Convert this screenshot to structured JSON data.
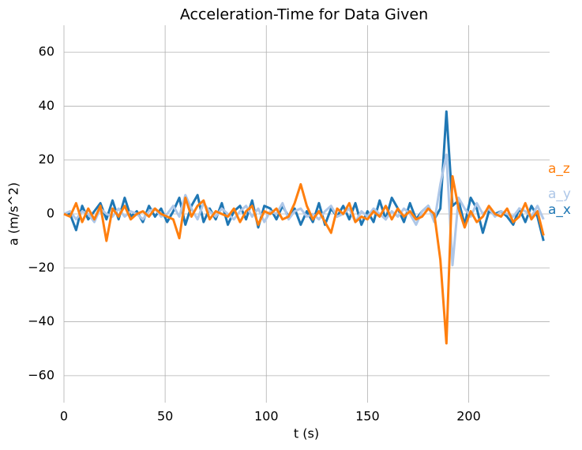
{
  "chart_data": {
    "type": "line",
    "title": "Acceleration-Time for Data Given",
    "x_label": "t (s)",
    "y_label": "a (m/s^2)",
    "x": [
      0,
      3,
      6,
      9,
      12,
      15,
      18,
      21,
      24,
      27,
      30,
      33,
      36,
      39,
      42,
      45,
      48,
      51,
      54,
      57,
      60,
      63,
      66,
      69,
      72,
      75,
      78,
      81,
      84,
      87,
      90,
      93,
      96,
      99,
      102,
      105,
      108,
      111,
      114,
      117,
      120,
      123,
      126,
      129,
      132,
      135,
      138,
      141,
      144,
      147,
      150,
      153,
      156,
      159,
      162,
      165,
      168,
      171,
      174,
      177,
      180,
      183,
      186,
      189,
      192,
      195,
      198,
      201,
      204,
      207,
      210,
      213,
      216,
      219,
      222,
      225,
      228,
      231,
      234,
      237
    ],
    "series": [
      {
        "name": "a_x",
        "color": "#1f77b4",
        "values": [
          0,
          0,
          -6,
          3,
          -2,
          1,
          4,
          -2,
          5,
          -2,
          6,
          -1,
          1,
          -3,
          3,
          -1,
          2,
          -3,
          1,
          6,
          -4,
          3,
          7,
          -3,
          2,
          -2,
          4,
          -4,
          1,
          3,
          -2,
          5,
          -5,
          3,
          2,
          -2,
          3,
          -1,
          2,
          -4,
          1,
          -3,
          4,
          -4,
          2,
          -1,
          3,
          -2,
          4,
          -4,
          1,
          -3,
          5,
          -2,
          6,
          2,
          -3,
          4,
          -2,
          1,
          3,
          -2,
          2,
          38,
          3,
          5,
          -4,
          6,
          2,
          -7,
          1,
          0,
          1,
          -1,
          -4,
          2,
          -3,
          3,
          -1,
          -10
        ]
      },
      {
        "name": "a_y",
        "color": "#aec7e8",
        "values": [
          0,
          1,
          -2,
          1,
          0,
          -3,
          2,
          0,
          -1,
          2,
          -1,
          1,
          0,
          -2,
          1,
          2,
          -1,
          0,
          3,
          -1,
          7,
          2,
          -2,
          4,
          1,
          -1,
          2,
          0,
          -2,
          1,
          3,
          -1,
          2,
          -3,
          1,
          0,
          4,
          -2,
          1,
          2,
          -1,
          0,
          -2,
          1,
          3,
          -1,
          0,
          2,
          -3,
          1,
          -1,
          2,
          0,
          -2,
          1,
          -1,
          2,
          0,
          -4,
          1,
          3,
          -3,
          11,
          22,
          -19,
          6,
          2,
          -1,
          4,
          0,
          2,
          -1,
          1,
          0,
          -1,
          2,
          1,
          -1,
          3,
          -2
        ]
      },
      {
        "name": "a_z",
        "color": "#ff7f0e",
        "values": [
          0,
          -1,
          4,
          -3,
          2,
          -2,
          3,
          -10,
          2,
          -1,
          3,
          -2,
          0,
          1,
          -1,
          2,
          0,
          -1,
          -2,
          -9,
          6,
          -1,
          3,
          5,
          -2,
          1,
          0,
          -1,
          2,
          -3,
          1,
          3,
          -4,
          1,
          0,
          2,
          -2,
          -1,
          4,
          11,
          3,
          -2,
          1,
          -3,
          -7,
          2,
          0,
          4,
          -3,
          -1,
          -2,
          1,
          -1,
          3,
          -2,
          2,
          -1,
          1,
          -2,
          -1,
          2,
          0,
          -17,
          -48,
          14,
          2,
          -5,
          1,
          -3,
          -1,
          3,
          0,
          -1,
          2,
          -3,
          -1,
          4,
          -2,
          1,
          -8
        ]
      }
    ],
    "xlim": [
      0,
      240
    ],
    "ylim": [
      -70,
      70
    ],
    "xticks": [
      0,
      50,
      100,
      150,
      200
    ],
    "yticks": [
      {
        "value": -60,
        "label": "−60"
      },
      {
        "value": -40,
        "label": "−40"
      },
      {
        "value": -20,
        "label": "−20"
      },
      0,
      20,
      40,
      60
    ],
    "grid": true
  }
}
